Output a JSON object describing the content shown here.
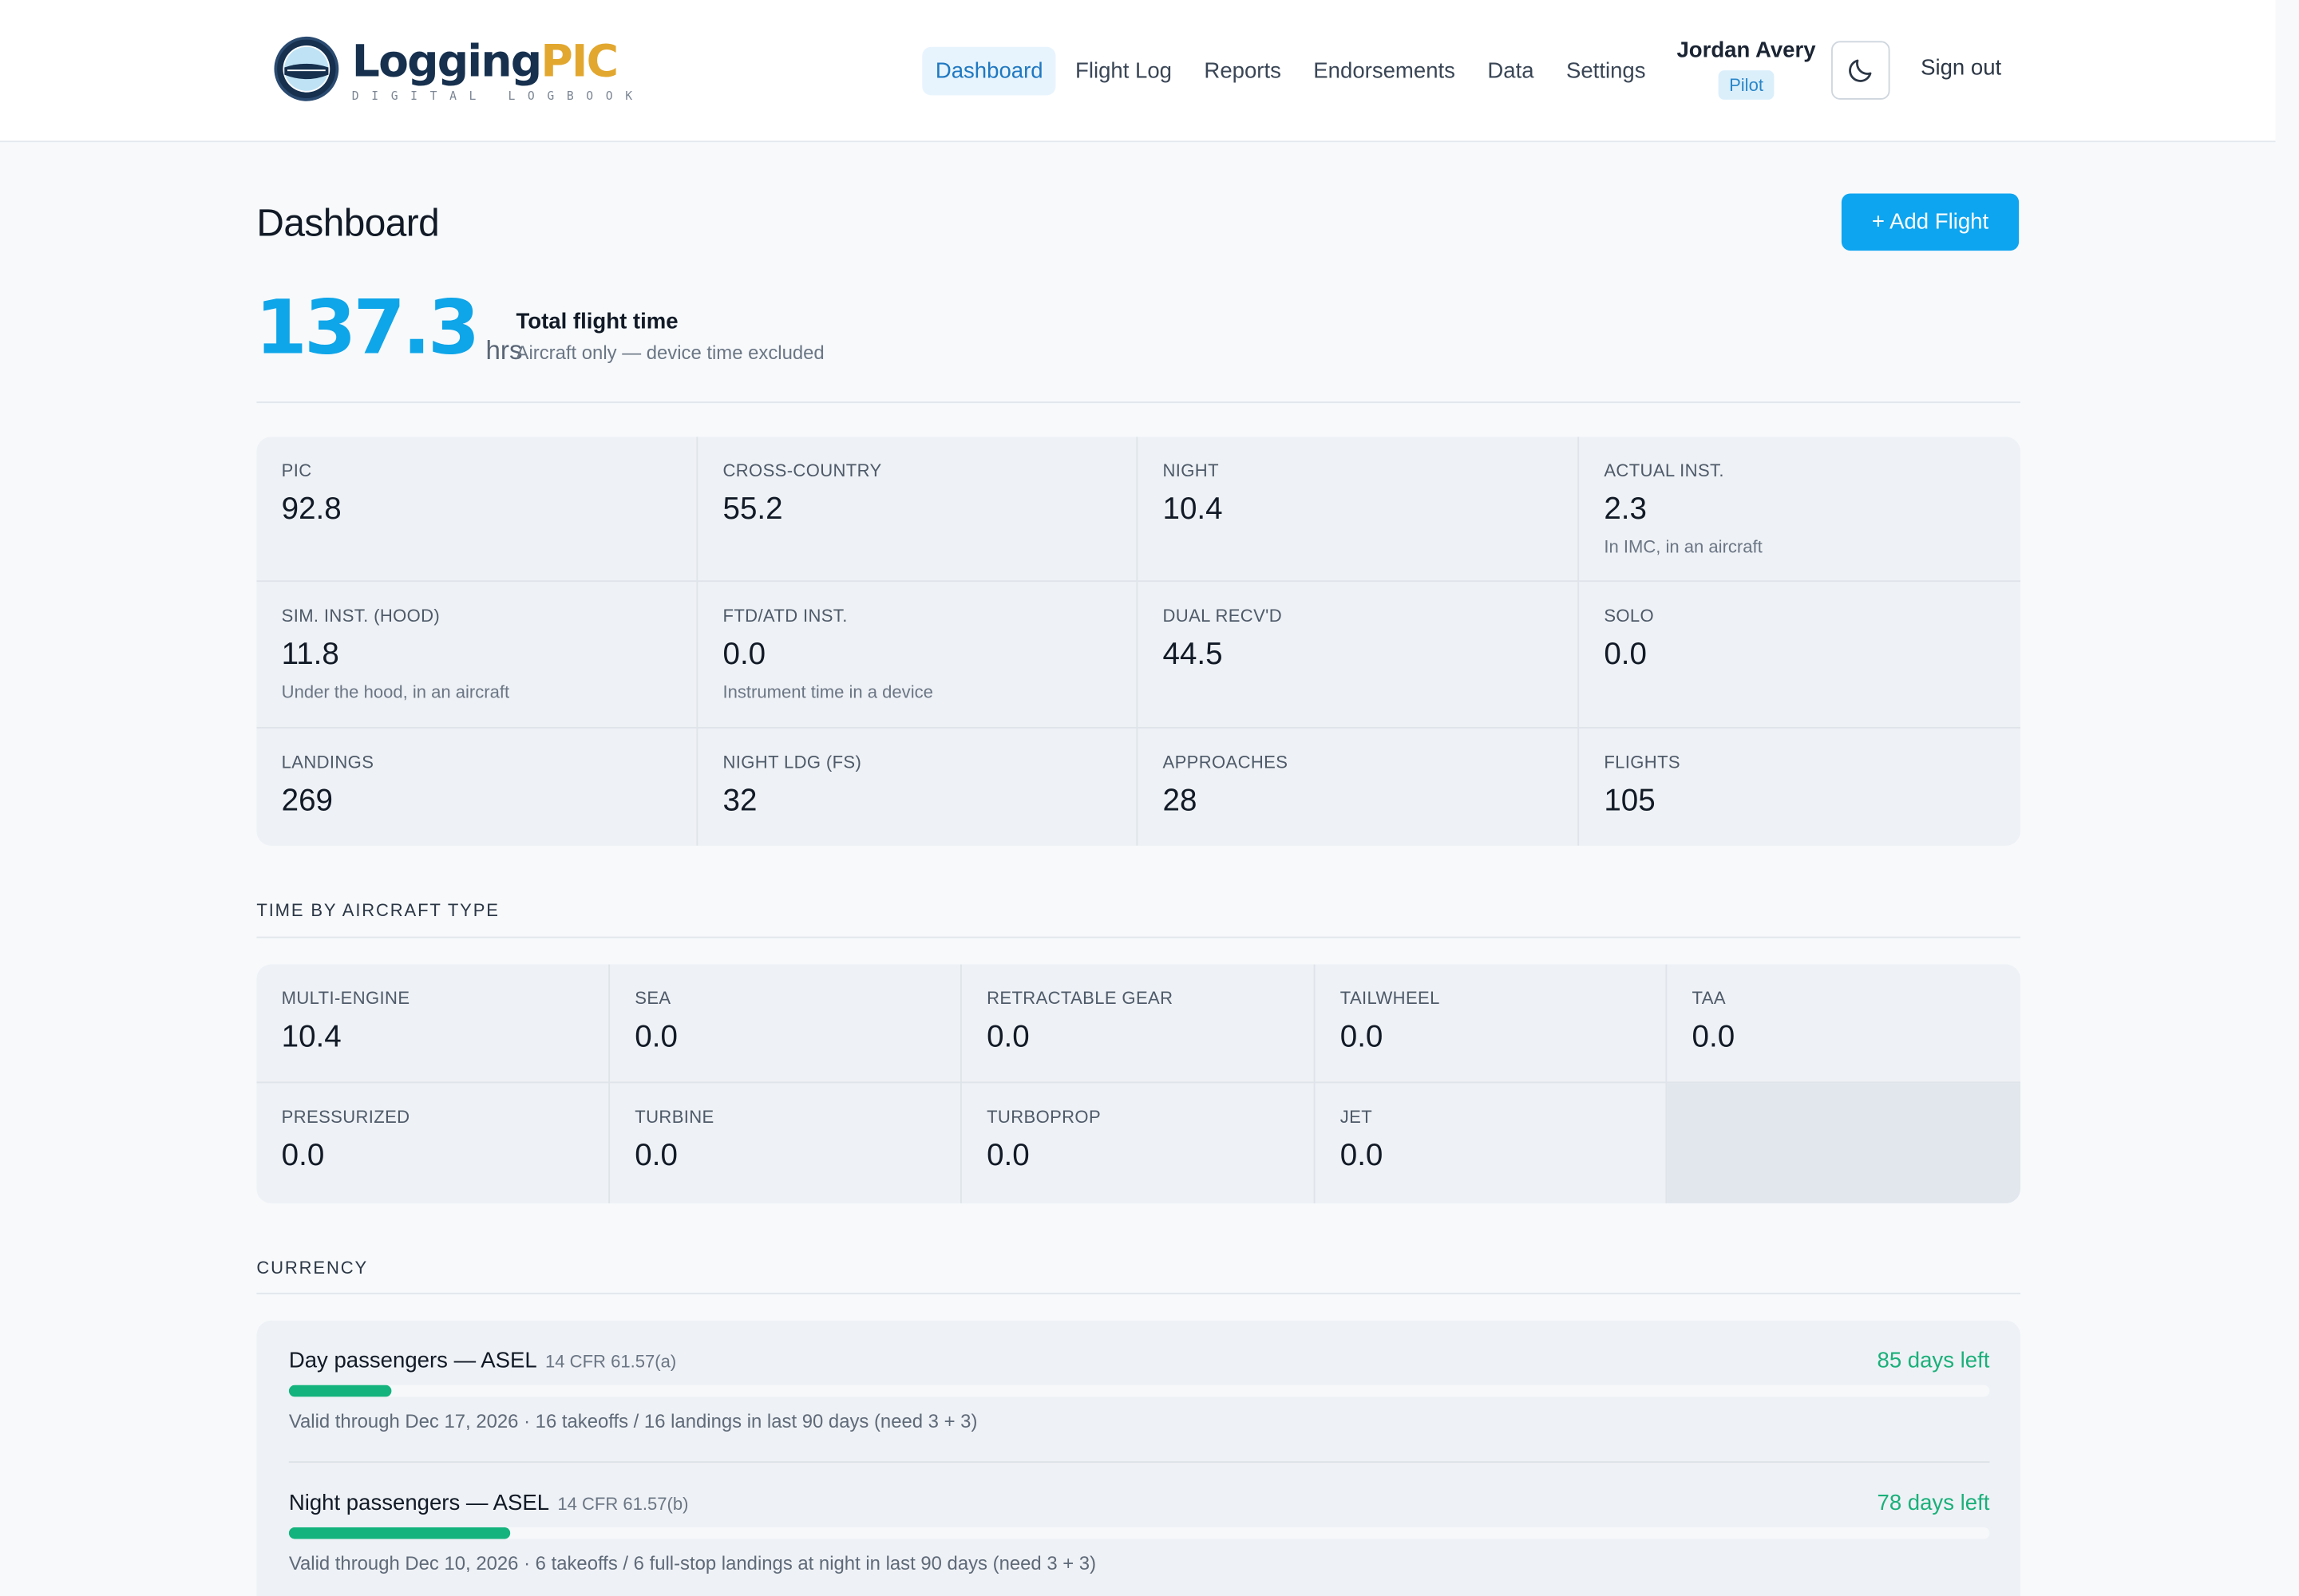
{
  "brand": {
    "name_a": "Logging",
    "name_b": "PIC",
    "tagline": "DIGITAL LOGBOOK"
  },
  "nav": {
    "items": [
      {
        "label": "Dashboard",
        "active": true
      },
      {
        "label": "Flight Log",
        "active": false
      },
      {
        "label": "Reports",
        "active": false
      },
      {
        "label": "Endorsements",
        "active": false
      },
      {
        "label": "Data",
        "active": false
      },
      {
        "label": "Settings",
        "active": false
      }
    ]
  },
  "user": {
    "name": "Jordan Avery",
    "role": "Pilot"
  },
  "header": {
    "theme_icon": "moon-icon",
    "signout_label": "Sign out"
  },
  "page": {
    "title": "Dashboard",
    "add_flight_label": "+ Add Flight"
  },
  "total": {
    "value": "137.3",
    "unit": "hrs",
    "label": "Total flight time",
    "sub": "Aircraft only — device time excluded"
  },
  "stats": [
    {
      "label": "PIC",
      "value": "92.8",
      "note": ""
    },
    {
      "label": "CROSS-COUNTRY",
      "value": "55.2",
      "note": ""
    },
    {
      "label": "NIGHT",
      "value": "10.4",
      "note": ""
    },
    {
      "label": "ACTUAL INST.",
      "value": "2.3",
      "note": "In IMC, in an aircraft"
    },
    {
      "label": "SIM. INST. (HOOD)",
      "value": "11.8",
      "note": "Under the hood, in an aircraft"
    },
    {
      "label": "FTD/ATD INST.",
      "value": "0.0",
      "note": "Instrument time in a device"
    },
    {
      "label": "DUAL RECV'D",
      "value": "44.5",
      "note": ""
    },
    {
      "label": "SOLO",
      "value": "0.0",
      "note": ""
    },
    {
      "label": "LANDINGS",
      "value": "269",
      "note": ""
    },
    {
      "label": "NIGHT LDG (FS)",
      "value": "32",
      "note": ""
    },
    {
      "label": "APPROACHES",
      "value": "28",
      "note": ""
    },
    {
      "label": "FLIGHTS",
      "value": "105",
      "note": ""
    }
  ],
  "aircraft_type": {
    "title": "TIME BY AIRCRAFT TYPE",
    "items": [
      {
        "label": "MULTI-ENGINE",
        "value": "10.4"
      },
      {
        "label": "SEA",
        "value": "0.0"
      },
      {
        "label": "RETRACTABLE GEAR",
        "value": "0.0"
      },
      {
        "label": "TAILWHEEL",
        "value": "0.0"
      },
      {
        "label": "TAA",
        "value": "0.0"
      },
      {
        "label": "PRESSURIZED",
        "value": "0.0"
      },
      {
        "label": "TURBINE",
        "value": "0.0"
      },
      {
        "label": "TURBOPROP",
        "value": "0.0"
      },
      {
        "label": "JET",
        "value": "0.0"
      }
    ]
  },
  "currency": {
    "title": "CURRENCY",
    "items": [
      {
        "name": "Day passengers — ASEL",
        "reg": "14 CFR 61.57(a)",
        "days_left": "85 days left",
        "progress": 0.06,
        "detail": "Valid through Dec 17, 2026 · 16 takeoffs / 16 landings in last 90 days (need 3 + 3)"
      },
      {
        "name": "Night passengers — ASEL",
        "reg": "14 CFR 61.57(b)",
        "days_left": "78 days left",
        "progress": 0.13,
        "detail": "Valid through Dec 10, 2026 · 6 takeoffs / 6 full-stop landings at night in last 90 days (need 3 + 3)"
      }
    ]
  },
  "colors": {
    "accent": "#0ea5f0",
    "brand_navy": "#16304e",
    "brand_gold": "#e2a72e",
    "ok": "#14b37d"
  }
}
